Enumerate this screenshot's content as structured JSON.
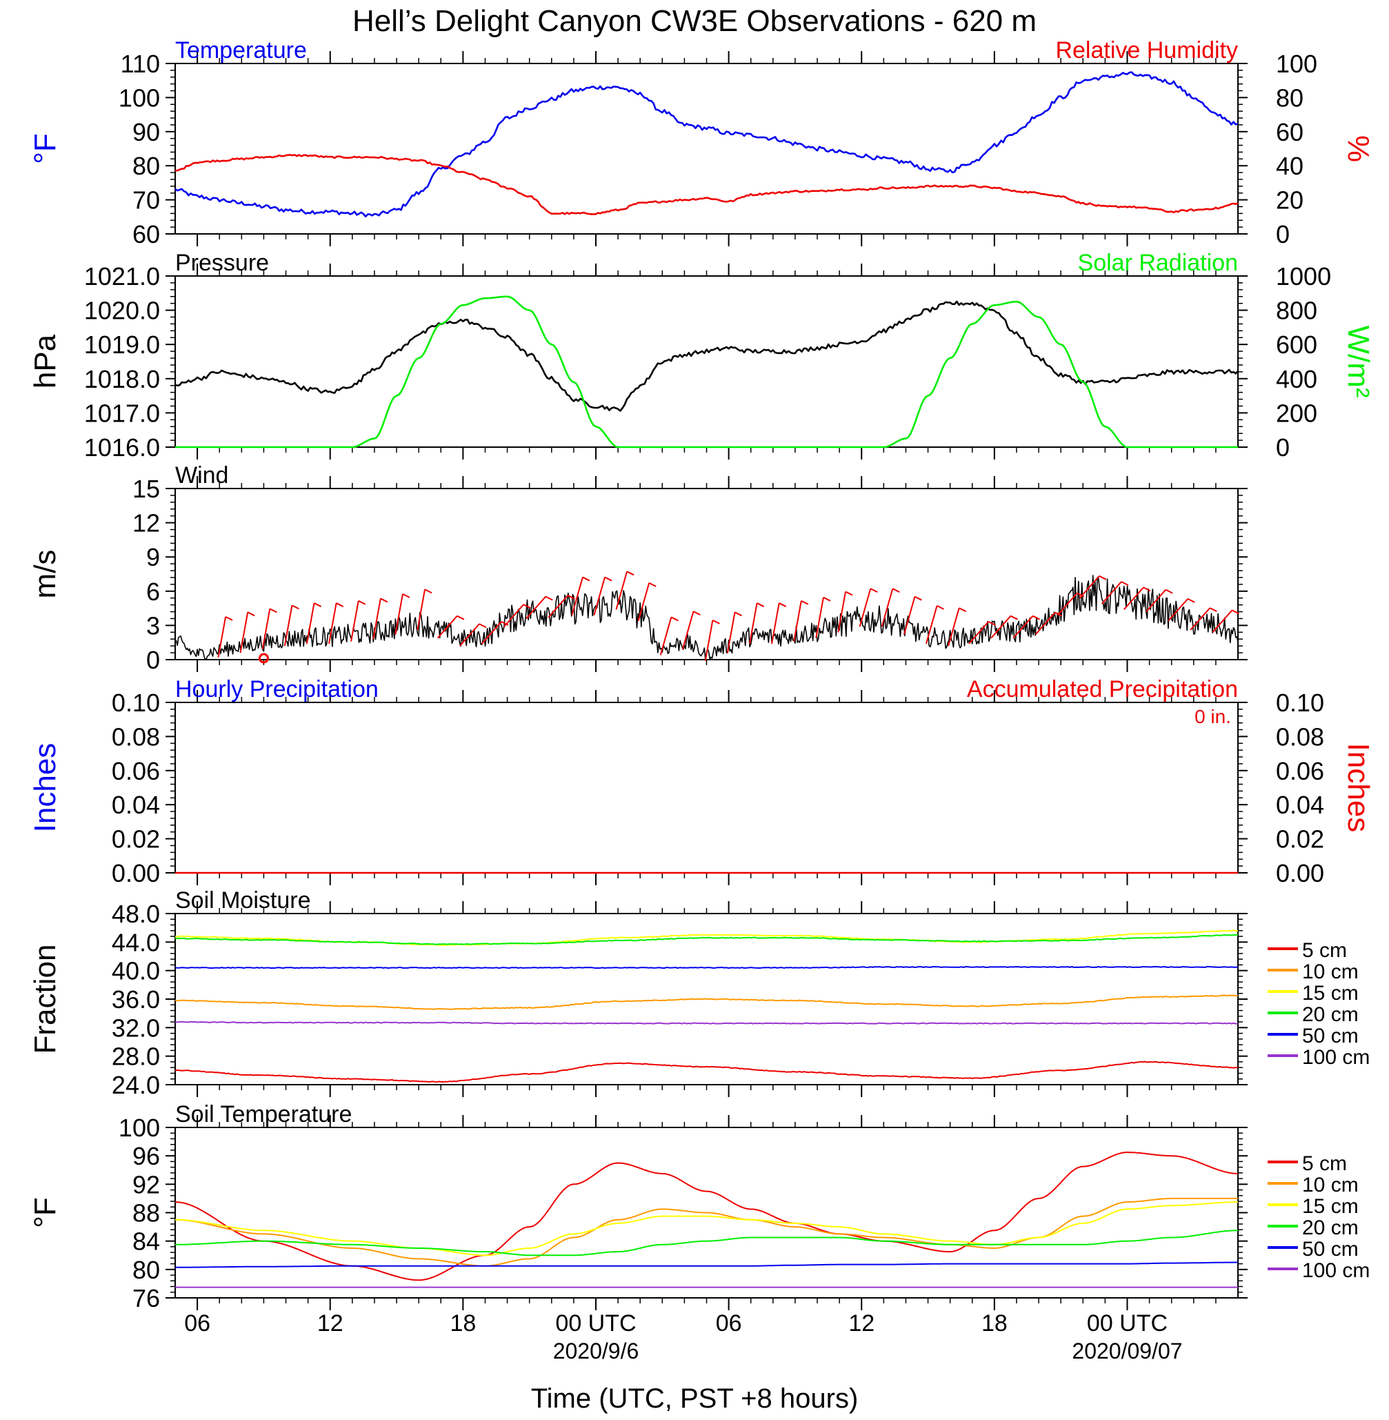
{
  "title": "Hell’s Delight Canyon CW3E Observations - 620 m",
  "xlabel": "Time (UTC, PST +8 hours)",
  "x_ticks": [
    "06",
    "12",
    "18",
    "00 UTC",
    "06",
    "12",
    "18",
    "00 UTC"
  ],
  "x_dates": [
    "2020/9/6",
    "2020/09/07"
  ],
  "colors": {
    "blue": "#0000ee",
    "red": "#ee0000",
    "green": "#00ee00",
    "black": "#000000"
  },
  "chart_data": [
    {
      "id": "temp_rh",
      "type": "line",
      "title_left": "Temperature",
      "title_right": "Relative Humidity",
      "ylabel_left": "°F",
      "ylabel_right": "%",
      "ylim_left": [
        60,
        110
      ],
      "ylim_right": [
        0,
        100
      ],
      "yticks_left": [
        "60",
        "70",
        "80",
        "90",
        "100",
        "110"
      ],
      "yticks_right": [
        "0",
        "20",
        "40",
        "60",
        "80",
        "100"
      ],
      "x_hours": [
        5,
        6,
        7,
        8,
        9,
        10,
        11,
        12,
        13,
        14,
        15,
        16,
        17,
        18,
        19,
        20,
        21,
        22,
        23,
        24,
        25,
        26,
        27,
        28,
        29,
        30,
        31,
        32,
        33,
        34,
        35,
        36,
        37,
        38,
        39,
        40,
        41,
        42,
        43,
        44,
        45,
        46,
        47,
        48,
        49,
        50,
        51,
        52,
        53
      ],
      "series": [
        {
          "name": "Temperature",
          "axis": "left",
          "color": "#0000ee",
          "values": [
            73,
            71,
            70,
            69,
            68,
            67,
            66.5,
            66.5,
            66,
            65.5,
            67,
            72,
            79,
            83,
            87,
            94,
            97,
            99.5,
            102,
            103,
            103,
            101,
            96,
            92,
            91,
            89.5,
            89,
            88,
            86.5,
            85,
            84,
            83,
            82,
            81,
            79,
            78.5,
            81,
            86,
            90,
            95,
            100,
            105,
            106,
            107,
            106,
            104.5,
            100,
            95,
            92
          ]
        },
        {
          "name": "Relative Humidity",
          "axis": "right",
          "color": "#ee0000",
          "values": [
            37,
            42,
            43,
            44,
            45,
            46,
            46,
            45,
            45,
            45,
            44,
            43,
            40,
            36,
            32,
            27,
            22,
            12,
            12,
            12,
            14,
            18,
            19,
            20,
            21,
            19,
            23,
            24,
            25,
            25,
            26,
            26,
            27,
            27,
            28,
            28,
            28,
            27,
            25,
            24,
            22,
            18,
            16,
            16,
            15,
            13,
            14,
            15,
            18
          ]
        }
      ]
    },
    {
      "id": "pressure_solar",
      "type": "line",
      "title_left": "Pressure",
      "title_right": "Solar Radiation",
      "ylabel_left": "hPa",
      "ylabel_right": "W/m²",
      "ylim_left": [
        1016.0,
        1021.0
      ],
      "ylim_right": [
        0,
        1000
      ],
      "yticks_left": [
        "1016.0",
        "1017.0",
        "1018.0",
        "1019.0",
        "1020.0",
        "1021.0"
      ],
      "yticks_right": [
        "0",
        "200",
        "400",
        "600",
        "800",
        "1000"
      ],
      "x_hours": [
        5,
        6,
        7,
        8,
        9,
        10,
        11,
        12,
        13,
        14,
        15,
        16,
        17,
        18,
        19,
        20,
        21,
        22,
        23,
        24,
        25,
        26,
        27,
        28,
        29,
        30,
        31,
        32,
        33,
        34,
        35,
        36,
        37,
        38,
        39,
        40,
        41,
        42,
        43,
        44,
        45,
        46,
        47,
        48,
        49,
        50,
        51,
        52,
        53
      ],
      "series": [
        {
          "name": "Pressure",
          "axis": "left",
          "color": "#000000",
          "values": [
            1017.8,
            1018.0,
            1018.2,
            1018.1,
            1018.0,
            1017.9,
            1017.7,
            1017.6,
            1017.8,
            1018.3,
            1018.8,
            1019.3,
            1019.6,
            1019.7,
            1019.5,
            1019.2,
            1018.7,
            1018.0,
            1017.4,
            1017.2,
            1017.1,
            1017.8,
            1018.5,
            1018.7,
            1018.8,
            1018.9,
            1018.8,
            1018.8,
            1018.8,
            1018.9,
            1019.0,
            1019.1,
            1019.4,
            1019.7,
            1020.0,
            1020.2,
            1020.2,
            1020.0,
            1019.3,
            1018.6,
            1018.1,
            1017.9,
            1017.9,
            1018.0,
            1018.1,
            1018.2,
            1018.2,
            1018.2,
            1018.2
          ]
        },
        {
          "name": "Solar Radiation",
          "axis": "right",
          "color": "#00ee00",
          "values": [
            0,
            0,
            0,
            0,
            0,
            0,
            0,
            0,
            0,
            50,
            300,
            520,
            720,
            830,
            870,
            880,
            800,
            600,
            380,
            120,
            0,
            0,
            0,
            0,
            0,
            0,
            0,
            0,
            0,
            0,
            0,
            0,
            0,
            50,
            300,
            520,
            720,
            830,
            850,
            760,
            600,
            380,
            120,
            0,
            0,
            0,
            0,
            0,
            0
          ]
        }
      ]
    },
    {
      "id": "wind",
      "type": "line",
      "title_left": "Wind",
      "ylabel_left": "m/s",
      "ylim_left": [
        0,
        15
      ],
      "yticks_left": [
        "0",
        "3",
        "6",
        "9",
        "12",
        "15"
      ],
      "x_hours": [
        5,
        6,
        7,
        8,
        9,
        10,
        11,
        12,
        13,
        14,
        15,
        16,
        17,
        18,
        19,
        20,
        21,
        22,
        23,
        24,
        25,
        26,
        27,
        28,
        29,
        30,
        31,
        32,
        33,
        34,
        35,
        36,
        37,
        38,
        39,
        40,
        41,
        42,
        43,
        44,
        45,
        46,
        47,
        48,
        49,
        50,
        51,
        52,
        53
      ],
      "series": [
        {
          "name": "Wind Speed",
          "axis": "left",
          "color": "#000000",
          "values": [
            1.5,
            0.5,
            0.8,
            1.2,
            1.5,
            1.8,
            2.0,
            2.0,
            2.2,
            2.4,
            2.8,
            3.2,
            2.5,
            1.8,
            2.0,
            3.5,
            4.2,
            4.3,
            4.5,
            4.5,
            5.0,
            4.0,
            1.0,
            1.5,
            0.5,
            1.2,
            2.0,
            2.0,
            2.2,
            2.5,
            3.0,
            3.5,
            3.5,
            2.8,
            2.0,
            1.8,
            2.0,
            2.5,
            2.5,
            2.8,
            4.5,
            6.0,
            5.5,
            5.0,
            4.8,
            4.0,
            3.2,
            3.0,
            2.0
          ]
        }
      ],
      "calm_marker_hour": 9
    },
    {
      "id": "precip",
      "type": "line",
      "title_left": "Hourly Precipitation",
      "title_right": "Accumulated Precipitation",
      "annotation": "0 in.",
      "ylabel_left": "Inches",
      "ylabel_right": "Inches",
      "ylim_left": [
        0,
        0.1
      ],
      "ylim_right": [
        0,
        0.1
      ],
      "yticks_left": [
        "0.00",
        "0.02",
        "0.04",
        "0.06",
        "0.08",
        "0.10"
      ],
      "yticks_right": [
        "0.00",
        "0.02",
        "0.04",
        "0.06",
        "0.08",
        "0.10"
      ],
      "x_hours": [
        5,
        53
      ],
      "series": [
        {
          "name": "Accumulated Precipitation",
          "axis": "left",
          "color": "#ee0000",
          "values": [
            0,
            0
          ]
        }
      ]
    },
    {
      "id": "soil_moisture",
      "type": "line",
      "title_left": "Soil Moisture",
      "ylabel_left": "Fraction",
      "ylim_left": [
        24.0,
        48.0
      ],
      "yticks_left": [
        "24.0",
        "28.0",
        "32.0",
        "36.0",
        "40.0",
        "44.0",
        "48.0"
      ],
      "x_hours": [
        5,
        9,
        13,
        17,
        21,
        25,
        29,
        33,
        37,
        41,
        45,
        49,
        53
      ],
      "series": [
        {
          "name": "5 cm",
          "color": "#ee0000",
          "values": [
            26.0,
            25.3,
            24.8,
            24.4,
            25.5,
            27.0,
            26.5,
            25.8,
            25.2,
            24.9,
            26.0,
            27.2,
            26.4
          ]
        },
        {
          "name": "10 cm",
          "color": "#ff9900",
          "values": [
            35.8,
            35.5,
            35.0,
            34.6,
            34.8,
            35.7,
            36.0,
            35.8,
            35.3,
            35.0,
            35.4,
            36.3,
            36.5
          ]
        },
        {
          "name": "15 cm",
          "color": "#ffff00",
          "values": [
            44.8,
            44.5,
            44.0,
            43.6,
            43.8,
            44.6,
            45.0,
            44.9,
            44.4,
            44.0,
            44.4,
            45.2,
            45.6
          ]
        },
        {
          "name": "20 cm",
          "color": "#00ee00",
          "values": [
            44.5,
            44.3,
            44.0,
            43.7,
            43.8,
            44.2,
            44.6,
            44.6,
            44.3,
            44.1,
            44.2,
            44.6,
            45.0
          ]
        },
        {
          "name": "50 cm",
          "color": "#0000ee",
          "values": [
            40.4,
            40.4,
            40.4,
            40.4,
            40.4,
            40.4,
            40.4,
            40.4,
            40.5,
            40.5,
            40.5,
            40.5,
            40.5
          ]
        },
        {
          "name": "100 cm",
          "color": "#9933cc",
          "values": [
            32.8,
            32.7,
            32.7,
            32.7,
            32.6,
            32.6,
            32.6,
            32.6,
            32.6,
            32.6,
            32.6,
            32.6,
            32.6
          ]
        }
      ]
    },
    {
      "id": "soil_temperature",
      "type": "line",
      "title_left": "Soil Temperature",
      "ylabel_left": "°F",
      "ylim_left": [
        76,
        100
      ],
      "yticks_left": [
        "76",
        "80",
        "84",
        "88",
        "92",
        "96",
        "100"
      ],
      "x_hours": [
        5,
        9,
        13,
        16,
        19,
        21,
        23,
        25,
        27,
        29,
        31,
        33,
        35,
        37,
        40,
        42,
        44,
        46,
        48,
        50,
        53
      ],
      "series": [
        {
          "name": "5 cm",
          "color": "#ee0000",
          "values": [
            89.5,
            84,
            80.5,
            78.5,
            82,
            86,
            92,
            95,
            93.5,
            91,
            88.5,
            86.5,
            85,
            84,
            82.5,
            85.5,
            90,
            94.5,
            96.5,
            96,
            93.5
          ]
        },
        {
          "name": "10 cm",
          "color": "#ff9900",
          "values": [
            87,
            85,
            83,
            81.5,
            80.5,
            81.5,
            84.5,
            87,
            88.5,
            88,
            87,
            86,
            85,
            84.5,
            83.5,
            83,
            84.5,
            87.5,
            89.5,
            90,
            90
          ]
        },
        {
          "name": "15 cm",
          "color": "#ffff00",
          "values": [
            87,
            85.5,
            84,
            83,
            82,
            83,
            85,
            86.5,
            87.5,
            87.5,
            87,
            86.5,
            86,
            85,
            84,
            83.5,
            84.5,
            86.5,
            88.5,
            89,
            89.5
          ]
        },
        {
          "name": "20 cm",
          "color": "#00ee00",
          "values": [
            83.5,
            84,
            83.5,
            83,
            82.5,
            82,
            82,
            82.5,
            83.5,
            84,
            84.5,
            84.5,
            84.5,
            84,
            83.5,
            83.5,
            83.5,
            83.5,
            84,
            84.5,
            85.5
          ]
        },
        {
          "name": "50 cm",
          "color": "#0000ee",
          "values": [
            80.3,
            80.4,
            80.5,
            80.5,
            80.5,
            80.5,
            80.5,
            80.5,
            80.5,
            80.5,
            80.5,
            80.6,
            80.7,
            80.7,
            80.8,
            80.8,
            80.8,
            80.8,
            80.8,
            80.9,
            81
          ]
        },
        {
          "name": "100 cm",
          "color": "#9933cc",
          "values": [
            77.5,
            77.5,
            77.5,
            77.5,
            77.5,
            77.5,
            77.5,
            77.5,
            77.5,
            77.5,
            77.5,
            77.5,
            77.5,
            77.5,
            77.5,
            77.5,
            77.5,
            77.5,
            77.5,
            77.5,
            77.5
          ]
        }
      ]
    }
  ]
}
